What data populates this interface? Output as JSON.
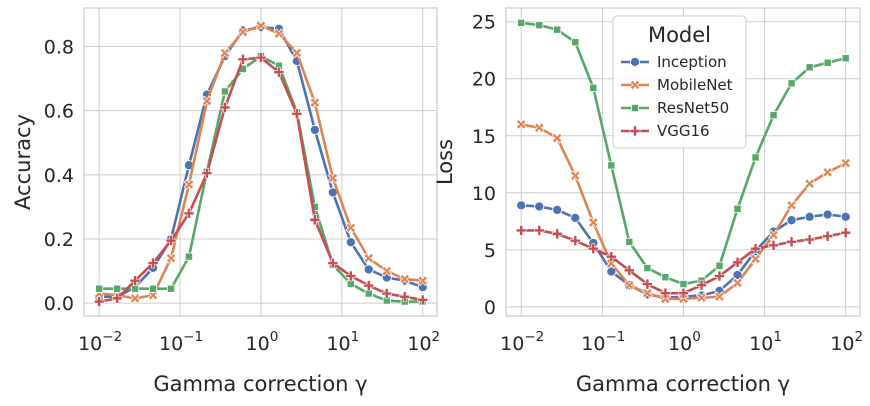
{
  "chart_data": [
    {
      "type": "line",
      "xscale": "log",
      "xlabel": "Gamma correction γ",
      "ylabel": "Accuracy",
      "xlim": [
        0.0065,
        150
      ],
      "ylim": [
        -0.04,
        0.92
      ],
      "yticks": [
        "0.0",
        "0.2",
        "0.4",
        "0.6",
        "0.8"
      ],
      "xticks": [
        {
          "base": "10",
          "exp": "−2"
        },
        {
          "base": "10",
          "exp": "−1"
        },
        {
          "base": "10",
          "exp": "0"
        },
        {
          "base": "10",
          "exp": "1"
        },
        {
          "base": "10",
          "exp": "2"
        }
      ],
      "x": [
        0.01,
        0.0167,
        0.0278,
        0.0464,
        0.0774,
        0.129,
        0.215,
        0.359,
        0.599,
        1.0,
        1.67,
        2.78,
        4.64,
        7.74,
        12.9,
        21.5,
        35.9,
        59.9,
        100
      ],
      "series": [
        {
          "name": "Inception",
          "color": "#4c72b0",
          "marker": "circle",
          "values": [
            0.02,
            0.02,
            0.05,
            0.11,
            0.2,
            0.43,
            0.65,
            0.77,
            0.85,
            0.86,
            0.855,
            0.755,
            0.54,
            0.345,
            0.19,
            0.105,
            0.08,
            0.07,
            0.05
          ]
        },
        {
          "name": "MobileNet",
          "color": "#dd8452",
          "marker": "x",
          "values": [
            0.03,
            0.025,
            0.015,
            0.025,
            0.14,
            0.37,
            0.63,
            0.78,
            0.845,
            0.865,
            0.84,
            0.78,
            0.625,
            0.39,
            0.235,
            0.14,
            0.1,
            0.075,
            0.07
          ]
        },
        {
          "name": "ResNet50",
          "color": "#55a868",
          "marker": "square",
          "values": [
            0.045,
            0.045,
            0.045,
            0.045,
            0.045,
            0.145,
            0.41,
            0.66,
            0.73,
            0.77,
            0.74,
            0.595,
            0.3,
            0.12,
            0.06,
            0.03,
            0.008,
            0.005,
            0.005
          ]
        },
        {
          "name": "VGG16",
          "color": "#c44e52",
          "marker": "plus",
          "values": [
            0.005,
            0.015,
            0.07,
            0.125,
            0.195,
            0.28,
            0.405,
            0.61,
            0.76,
            0.765,
            0.72,
            0.59,
            0.26,
            0.125,
            0.085,
            0.055,
            0.03,
            0.02,
            0.01
          ]
        }
      ]
    },
    {
      "type": "line",
      "xscale": "log",
      "xlabel": "Gamma correction γ",
      "ylabel": "Loss",
      "xlim": [
        0.0065,
        150
      ],
      "ylim": [
        -0.8,
        26.2
      ],
      "yticks": [
        "0",
        "5",
        "10",
        "15",
        "20",
        "25"
      ],
      "xticks": [
        {
          "base": "10",
          "exp": "−2"
        },
        {
          "base": "10",
          "exp": "−1"
        },
        {
          "base": "10",
          "exp": "0"
        },
        {
          "base": "10",
          "exp": "1"
        },
        {
          "base": "10",
          "exp": "2"
        }
      ],
      "legend": {
        "title": "Model",
        "position": "top-center"
      },
      "x": [
        0.01,
        0.0167,
        0.0278,
        0.0464,
        0.0774,
        0.129,
        0.215,
        0.359,
        0.599,
        1.0,
        1.67,
        2.78,
        4.64,
        7.74,
        12.9,
        21.5,
        35.9,
        59.9,
        100
      ],
      "series": [
        {
          "name": "Inception",
          "color": "#4c72b0",
          "marker": "circle",
          "values": [
            8.9,
            8.8,
            8.5,
            7.8,
            5.6,
            3.1,
            1.9,
            1.1,
            0.8,
            0.9,
            1.0,
            1.4,
            2.8,
            4.9,
            6.6,
            7.6,
            7.9,
            8.1,
            7.9
          ]
        },
        {
          "name": "MobileNet",
          "color": "#dd8452",
          "marker": "x",
          "values": [
            16.0,
            15.7,
            14.8,
            11.5,
            7.4,
            3.8,
            1.9,
            1.2,
            0.7,
            0.7,
            0.8,
            0.9,
            2.1,
            4.2,
            6.3,
            8.9,
            10.8,
            11.8,
            12.6
          ]
        },
        {
          "name": "ResNet50",
          "color": "#55a868",
          "marker": "square",
          "values": [
            24.9,
            24.7,
            24.3,
            23.2,
            19.2,
            12.4,
            5.7,
            3.4,
            2.6,
            2.0,
            2.3,
            3.6,
            8.6,
            13.1,
            16.8,
            19.6,
            21.0,
            21.4,
            21.8
          ]
        },
        {
          "name": "VGG16",
          "color": "#c44e52",
          "marker": "plus",
          "values": [
            6.7,
            6.7,
            6.4,
            5.8,
            5.1,
            4.4,
            3.2,
            2.0,
            1.2,
            1.2,
            1.9,
            2.7,
            3.9,
            5.1,
            5.4,
            5.7,
            5.9,
            6.2,
            6.5
          ]
        }
      ]
    }
  ]
}
